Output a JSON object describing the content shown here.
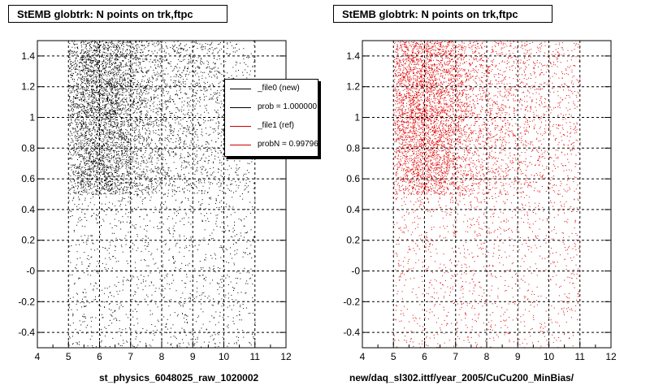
{
  "footer_text": "",
  "chart_data": [
    {
      "type": "scatter",
      "title": "StEMB globtrk: N points on trk,ftpc",
      "xlabel": "st_physics_6048025_raw_1020002",
      "ylabel": "",
      "xlim": [
        4,
        12
      ],
      "ylim": [
        -0.5,
        1.5
      ],
      "x_ticks": [
        "4",
        "5",
        "6",
        "7",
        "8",
        "9",
        "10",
        "11",
        "12"
      ],
      "y_ticks": [
        "-0.4",
        "-0.2",
        "-0",
        "0.2",
        "0.4",
        "0.6",
        "0.8",
        "1",
        "1.2",
        "1.4"
      ],
      "grid": true,
      "marker_color": "#000000",
      "points_note": "",
      "legend": {
        "placement": "top-right",
        "entries": [
          {
            "label": "_file0 (new)",
            "color": "#000000"
          },
          {
            "label": "prob = 1.000000",
            "color": "#000000"
          },
          {
            "label": "_file1 (ref)",
            "color": "#cc0000"
          },
          {
            "label": "probN = 0.997963",
            "color": "#cc0000"
          }
        ]
      }
    },
    {
      "type": "scatter",
      "title": "StEMB globtrk: N points on trk,ftpc",
      "xlabel": "new/daq_sl302.ittf/year_2005/CuCu200_MinBias/",
      "ylabel": "",
      "xlim": [
        4,
        12
      ],
      "ylim": [
        -0.5,
        1.5
      ],
      "x_ticks": [
        "4",
        "5",
        "6",
        "7",
        "8",
        "9",
        "10",
        "11",
        "12"
      ],
      "y_ticks": [
        "-0.4",
        "-0.2",
        "-0",
        "0.2",
        "0.4",
        "0.6",
        "0.8",
        "1",
        "1.2",
        "1.4"
      ],
      "grid": true,
      "marker_color": "#e00000"
    }
  ]
}
